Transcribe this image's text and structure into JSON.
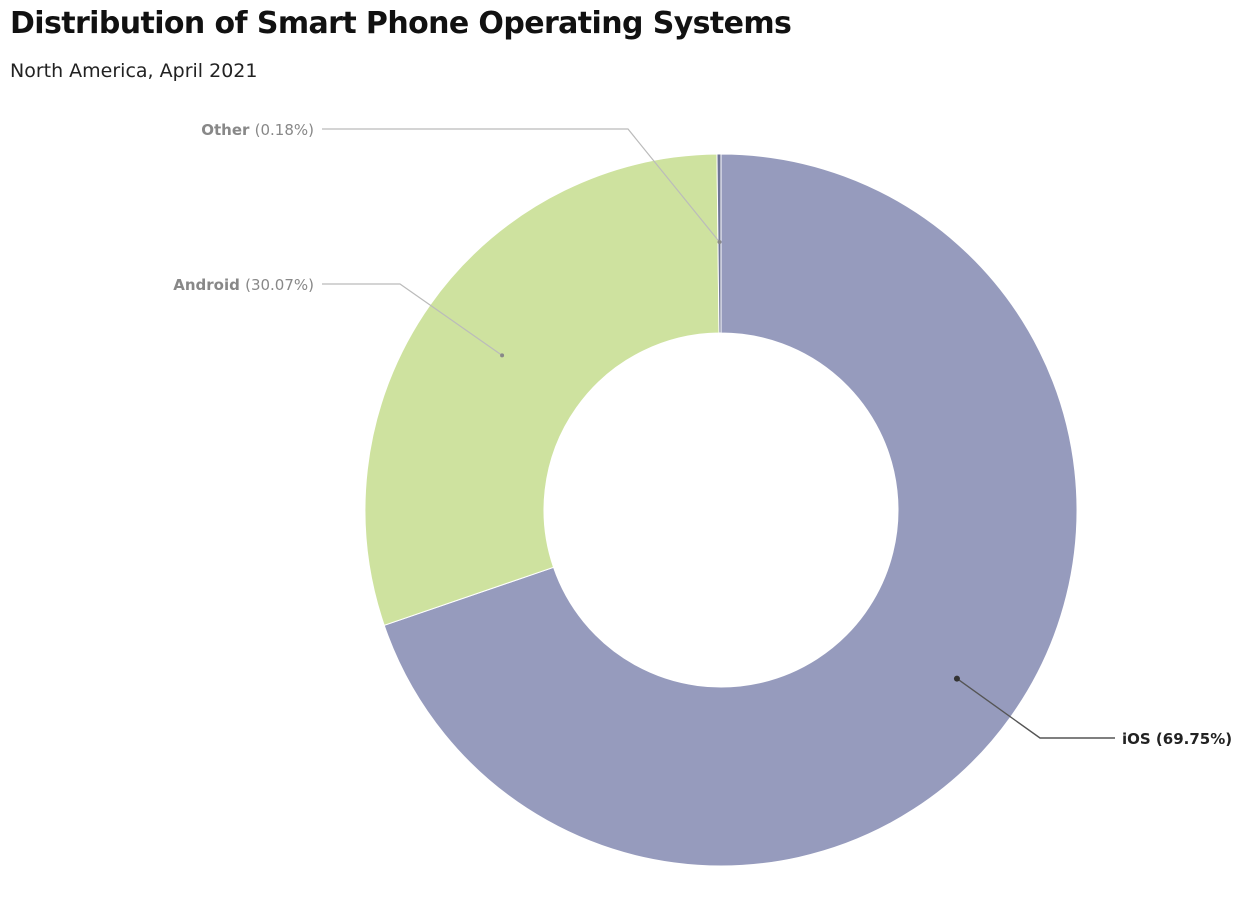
{
  "chart_data": {
    "type": "pie",
    "title": "Distribution of Smart Phone Operating Systems",
    "subtitle": "North America, April 2021",
    "slices": [
      {
        "name": "iOS",
        "value": 69.75,
        "label": "(69.75%)",
        "color": "#969bbd",
        "label_color": "#222222"
      },
      {
        "name": "Android",
        "value": 30.07,
        "label": "(30.07%)",
        "color": "#cee29f",
        "label_color": "#888888"
      },
      {
        "name": "Other",
        "value": 0.18,
        "label": "(0.18%)",
        "color": "#6f7596",
        "label_color": "#888888"
      }
    ],
    "legend": "none"
  }
}
